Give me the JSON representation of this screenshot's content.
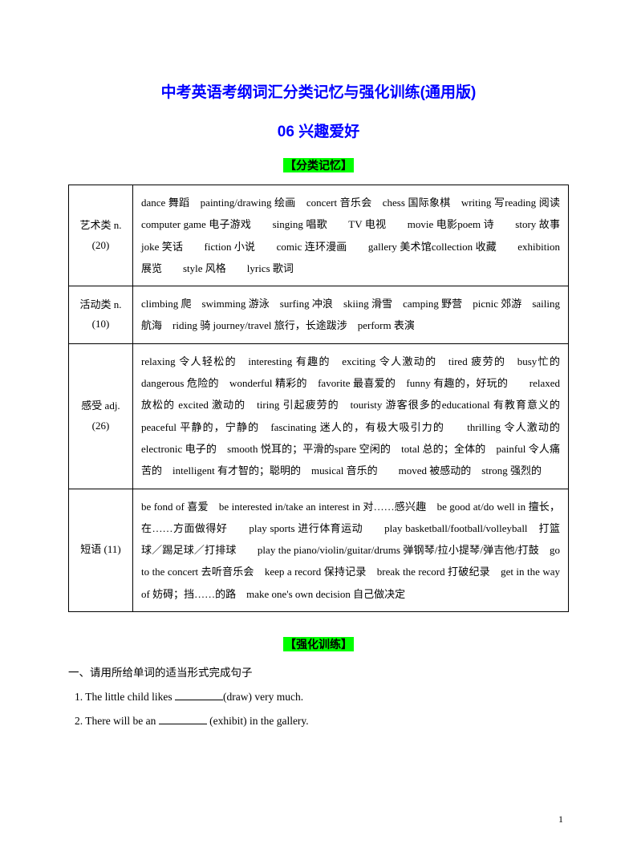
{
  "title_main": "中考英语考纲词汇分类记忆与强化训练(通用版)",
  "title_sub": "06 兴趣爱好",
  "section1_label": "【分类记忆】",
  "section2_label": "【强化训练】",
  "table": {
    "rows": [
      {
        "category": "艺术类 n. (20)",
        "content": "dance 舞蹈　painting/drawing 绘画　concert 音乐会　chess 国际象棋　writing 写reading 阅读　　computer game 电子游戏　　singing 唱歌　　TV 电视　　movie 电影poem 诗　　story 故事　　joke 笑话　　fiction 小说　　comic 连环漫画　　gallery 美术馆collection 收藏　　exhibition 展览　　style 风格　　lyrics 歌词"
      },
      {
        "category": "活动类 n. (10)",
        "content": "climbing 爬　swimming 游泳　surfing 冲浪　skiing 滑雪　camping 野营　picnic 郊游　sailing 航海　riding 骑 journey/travel 旅行，长途跋涉　perform 表演"
      },
      {
        "category": "感受 adj. (26)",
        "content": "relaxing 令人轻松的　interesting 有趣的　exciting 令人激动的　tired 疲劳的　busy忙的　dangerous 危险的　wonderful 精彩的　favorite 最喜爱的　funny 有趣的，好玩的　　relaxed 放松的 excited 激动的　tiring 引起疲劳的　touristy 游客很多的educational 有教育意义的　peaceful 平静的，宁静的　fascinating 迷人的，有极大吸引力的　　thrilling 令人激动的　　electronic 电子的　smooth 悦耳的；平滑的spare 空闲的　total 总的；全体的　painful 令人痛苦的　intelligent 有才智的；聪明的　musical 音乐的　　moved 被感动的　strong 强烈的"
      },
      {
        "category": "短语 (11)",
        "content": "be fond of 喜爱　be interested in/take an interest in 对……感兴趣　be good at/do well in 擅长，在……方面做得好　　play sports 进行体育运动　　play basketball/football/volleyball　打篮球／踢足球／打排球　　play the piano/violin/guitar/drums 弹钢琴/拉小提琴/弹吉他/打鼓　go to the concert 去听音乐会　keep a record 保持记录　break the record 打破纪录　get in the way of 妨碍；挡……的路　make one's own decision 自己做决定"
      }
    ]
  },
  "exercise_heading": "一、请用所给单词的适当形式完成句子",
  "exercises": [
    {
      "pre": "1. The little child likes ",
      "post": "(draw) very much."
    },
    {
      "pre": "2. There will be an ",
      "post": " (exhibit) in the gallery."
    }
  ],
  "page_number": "1"
}
